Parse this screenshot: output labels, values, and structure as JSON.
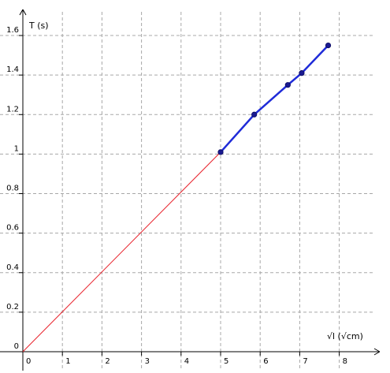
{
  "chart_data": {
    "type": "line",
    "xlabel": "√l  (√cm)",
    "ylabel": "T   (s)",
    "xlim": [
      0,
      8
    ],
    "ylim": [
      0,
      1.6
    ],
    "x_ticks": [
      0,
      1,
      2,
      3,
      4,
      5,
      6,
      7,
      8
    ],
    "y_ticks": [
      0,
      0.2,
      0.4,
      0.6,
      0.8,
      1,
      1.2,
      1.4,
      1.6
    ],
    "x_tick_labels": [
      "0",
      "1",
      "2",
      "3",
      "4",
      "5",
      "6",
      "7",
      "8"
    ],
    "y_tick_labels": [
      "0",
      "0.2",
      "0.4",
      "0.6",
      "0.8",
      "1",
      "1.2",
      "1.4",
      "1.6"
    ],
    "grid": true,
    "series": [
      {
        "name": "",
        "color": "#e8202a",
        "x": [
          0,
          5
        ],
        "y": [
          0,
          1.01
        ]
      },
      {
        "name": "",
        "color": "#1f2bd8",
        "markers": true,
        "x": [
          5,
          5.85,
          6.7,
          7.05,
          7.72
        ],
        "y": [
          1.01,
          1.2,
          1.35,
          1.41,
          1.55
        ]
      }
    ]
  }
}
